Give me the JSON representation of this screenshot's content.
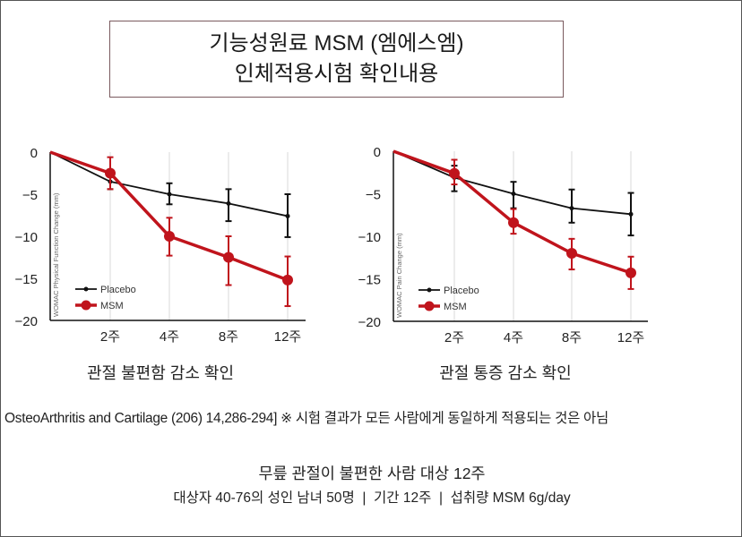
{
  "header": {
    "title_line1": "기능성원료 MSM (엠에스엠)",
    "title_line2": "인체적용시험 확인내용"
  },
  "chart_data": [
    {
      "type": "line",
      "subtitle": "관절 불편함 감소 확인",
      "ylabel": "WOMAC Physical Function Change (mm)",
      "xlabel": "",
      "categories": [
        "0",
        "2주",
        "4주",
        "8주",
        "12주"
      ],
      "x_tick_labels": [
        "2주",
        "4주",
        "8주",
        "12주"
      ],
      "y_ticks": [
        0,
        -5,
        -10,
        -15,
        -20
      ],
      "ylim": [
        -20,
        0
      ],
      "grid": "vertical",
      "legend": "bottom-left",
      "series": [
        {
          "name": "Placebo",
          "color": "#111111",
          "values": [
            0,
            -3.5,
            -5.0,
            -6.1,
            -7.6
          ],
          "err_low": [
            0,
            -4.4,
            -6.2,
            -8.2,
            -10.1
          ],
          "err_high": [
            0,
            -2.5,
            -3.7,
            -4.4,
            -5.0
          ]
        },
        {
          "name": "MSM",
          "color": "#c0141c",
          "values": [
            0,
            -2.5,
            -10.0,
            -12.5,
            -15.2
          ],
          "err_low": [
            0,
            -4.4,
            -12.3,
            -15.8,
            -18.3
          ],
          "err_high": [
            0,
            -0.6,
            -7.8,
            -10.0,
            -12.4
          ]
        }
      ]
    },
    {
      "type": "line",
      "subtitle": "관절 통증 감소 확인",
      "ylabel": "WOMAC Pain Change (mm)",
      "xlabel": "",
      "categories": [
        "0",
        "2주",
        "4주",
        "8주",
        "12주"
      ],
      "x_tick_labels": [
        "2주",
        "4주",
        "8주",
        "12주"
      ],
      "y_ticks": [
        0,
        -5,
        -10,
        -15,
        -20
      ],
      "ylim": [
        -20,
        0
      ],
      "grid": "vertical",
      "legend": "bottom-left",
      "series": [
        {
          "name": "Placebo",
          "color": "#111111",
          "values": [
            0,
            -3.1,
            -5.0,
            -6.7,
            -7.4
          ],
          "err_low": [
            0,
            -4.7,
            -6.7,
            -8.4,
            -9.9
          ],
          "err_high": [
            0,
            -1.7,
            -3.6,
            -4.5,
            -4.9
          ]
        },
        {
          "name": "MSM",
          "color": "#c0141c",
          "values": [
            0,
            -2.6,
            -8.4,
            -12.0,
            -14.3
          ],
          "err_low": [
            0,
            -3.9,
            -9.7,
            -13.9,
            -16.2
          ],
          "err_high": [
            0,
            -1.0,
            -6.8,
            -10.3,
            -12.4
          ]
        }
      ]
    }
  ],
  "footer": {
    "citation": "OsteoArthritis and Cartilage (206) 14,286-294] ※ 시험 결과가 모든 사람에게 동일하게 적용되는 것은 아님",
    "study_title": "무릎 관절이 불편한 사람 대상 12주",
    "study_detail": "대상자 40-76의 성인 남녀 50명  |  기간 12주  |  섭취량 MSM 6g/day"
  }
}
